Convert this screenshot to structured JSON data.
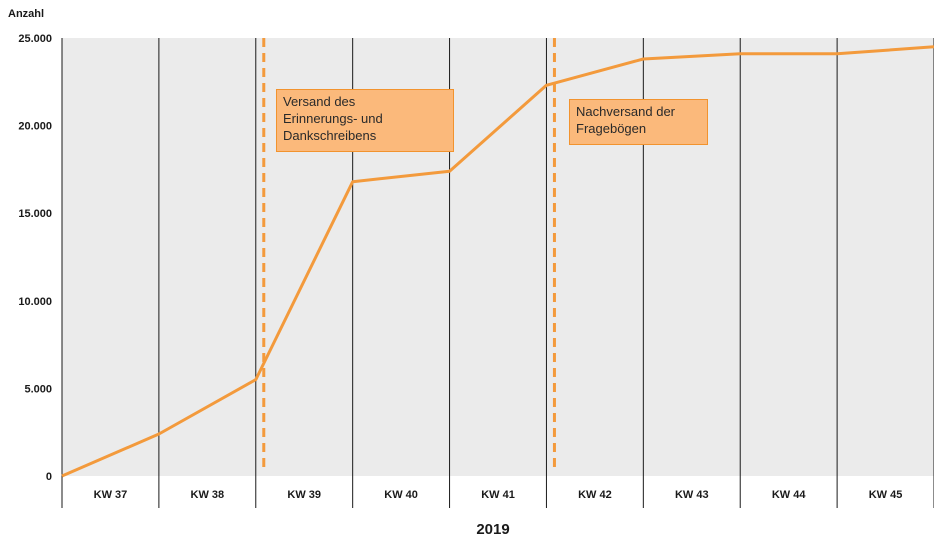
{
  "chart_data": {
    "type": "line",
    "ylabel": "Anzahl",
    "xlabel": "2019",
    "categories": [
      "KW 37",
      "KW 38",
      "KW 39",
      "KW 40",
      "KW 41",
      "KW 42",
      "KW 43",
      "KW 44",
      "KW 45"
    ],
    "ylim": [
      0,
      25000
    ],
    "yticks": [
      0,
      5000,
      10000,
      15000,
      20000,
      25000
    ],
    "ytick_labels": [
      "0",
      "5.000",
      "10.000",
      "15.000",
      "20.000",
      "25.000"
    ],
    "grid": "vertical lines between weeks",
    "series": [
      {
        "x": [
          "KW 37 start",
          "KW 38 start",
          "KW 39 start",
          "KW 40 start",
          "KW 41 start",
          "KW 42 start",
          "KW 43 start",
          "KW 44 start",
          "KW 45 start",
          "KW 45 end"
        ],
        "values": [
          0,
          2400,
          5500,
          16800,
          17400,
          22300,
          23800,
          24100,
          24100,
          24500
        ],
        "color": "#f39a3c"
      }
    ],
    "annotations": [
      {
        "text": "Versand des\nErinnerungs- und\nDankschreibens",
        "at": "KW 39",
        "marker": "dashed vertical line"
      },
      {
        "text": "Nachversand der\nFragebögen",
        "at": "KW 42",
        "marker": "dashed vertical line"
      }
    ],
    "colors": {
      "plot_bg": "#ebebeb",
      "line": "#f39a3c",
      "annotation_fill": "#fbb97b",
      "gridline": "#1a1a1a"
    }
  }
}
